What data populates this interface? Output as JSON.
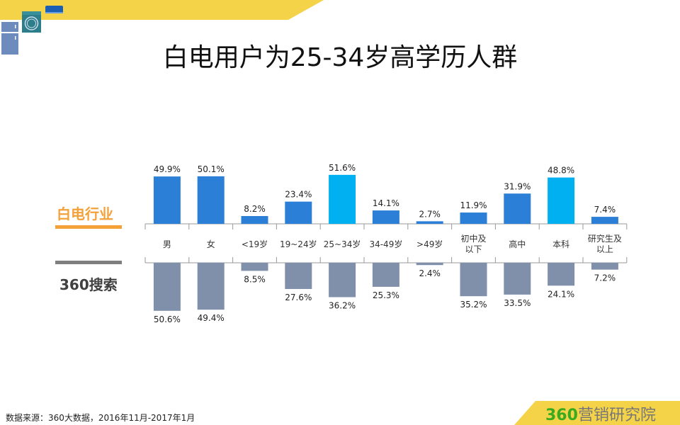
{
  "title": "白电用户为25-34岁高学历人群",
  "source": "数据来源：360大数据，2016年11月-2017年1月",
  "brand": {
    "num": "360",
    "text": "营销研究院"
  },
  "colors": {
    "banner": "#f4d348",
    "bar": "#2b7fd6",
    "bar_highlight": "#00b0f0",
    "bar_bottom": "#8090aa",
    "legend_top": "#f4a13a",
    "legend_bottom": "#7f7f7f",
    "brand_green": "#3aaa1e"
  },
  "icons": [
    "washing-machine-icon",
    "air-conditioner-icon",
    "refrigerator-icon"
  ],
  "chart_data": {
    "type": "bar",
    "categories": [
      "男",
      "女",
      "<19岁",
      "19~24岁",
      "25~34岁",
      "34-49岁",
      ">49岁",
      "初中及以下",
      "高中",
      "本科",
      "研究生及以上"
    ],
    "category_labels": [
      [
        "男"
      ],
      [
        "女"
      ],
      [
        "<19岁"
      ],
      [
        "19~24岁"
      ],
      [
        "25~34岁"
      ],
      [
        "34-49岁"
      ],
      [
        ">49岁"
      ],
      [
        "初中及",
        "以下"
      ],
      [
        "高中"
      ],
      [
        "本科"
      ],
      [
        "研究生及",
        "以上"
      ]
    ],
    "series": [
      {
        "name": "白电行业",
        "values": [
          49.9,
          50.1,
          8.2,
          23.4,
          51.6,
          14.1,
          2.7,
          11.9,
          31.9,
          48.8,
          7.4
        ],
        "highlight": [
          4,
          9
        ],
        "labels": [
          "49.9%",
          "50.1%",
          "8.2%",
          "23.4%",
          "51.6%",
          "14.1%",
          "2.7%",
          "11.9%",
          "31.9%",
          "48.8%",
          "7.4%"
        ]
      },
      {
        "name": "360搜索",
        "values": [
          50.6,
          49.4,
          8.5,
          27.6,
          36.2,
          25.3,
          2.4,
          35.2,
          33.5,
          24.1,
          7.2
        ],
        "labels": [
          "50.6%",
          "49.4%",
          "8.5%",
          "27.6%",
          "36.2%",
          "25.3%",
          "2.4%",
          "35.2%",
          "33.5%",
          "24.1%",
          "7.2%"
        ]
      }
    ],
    "unit": "%"
  }
}
